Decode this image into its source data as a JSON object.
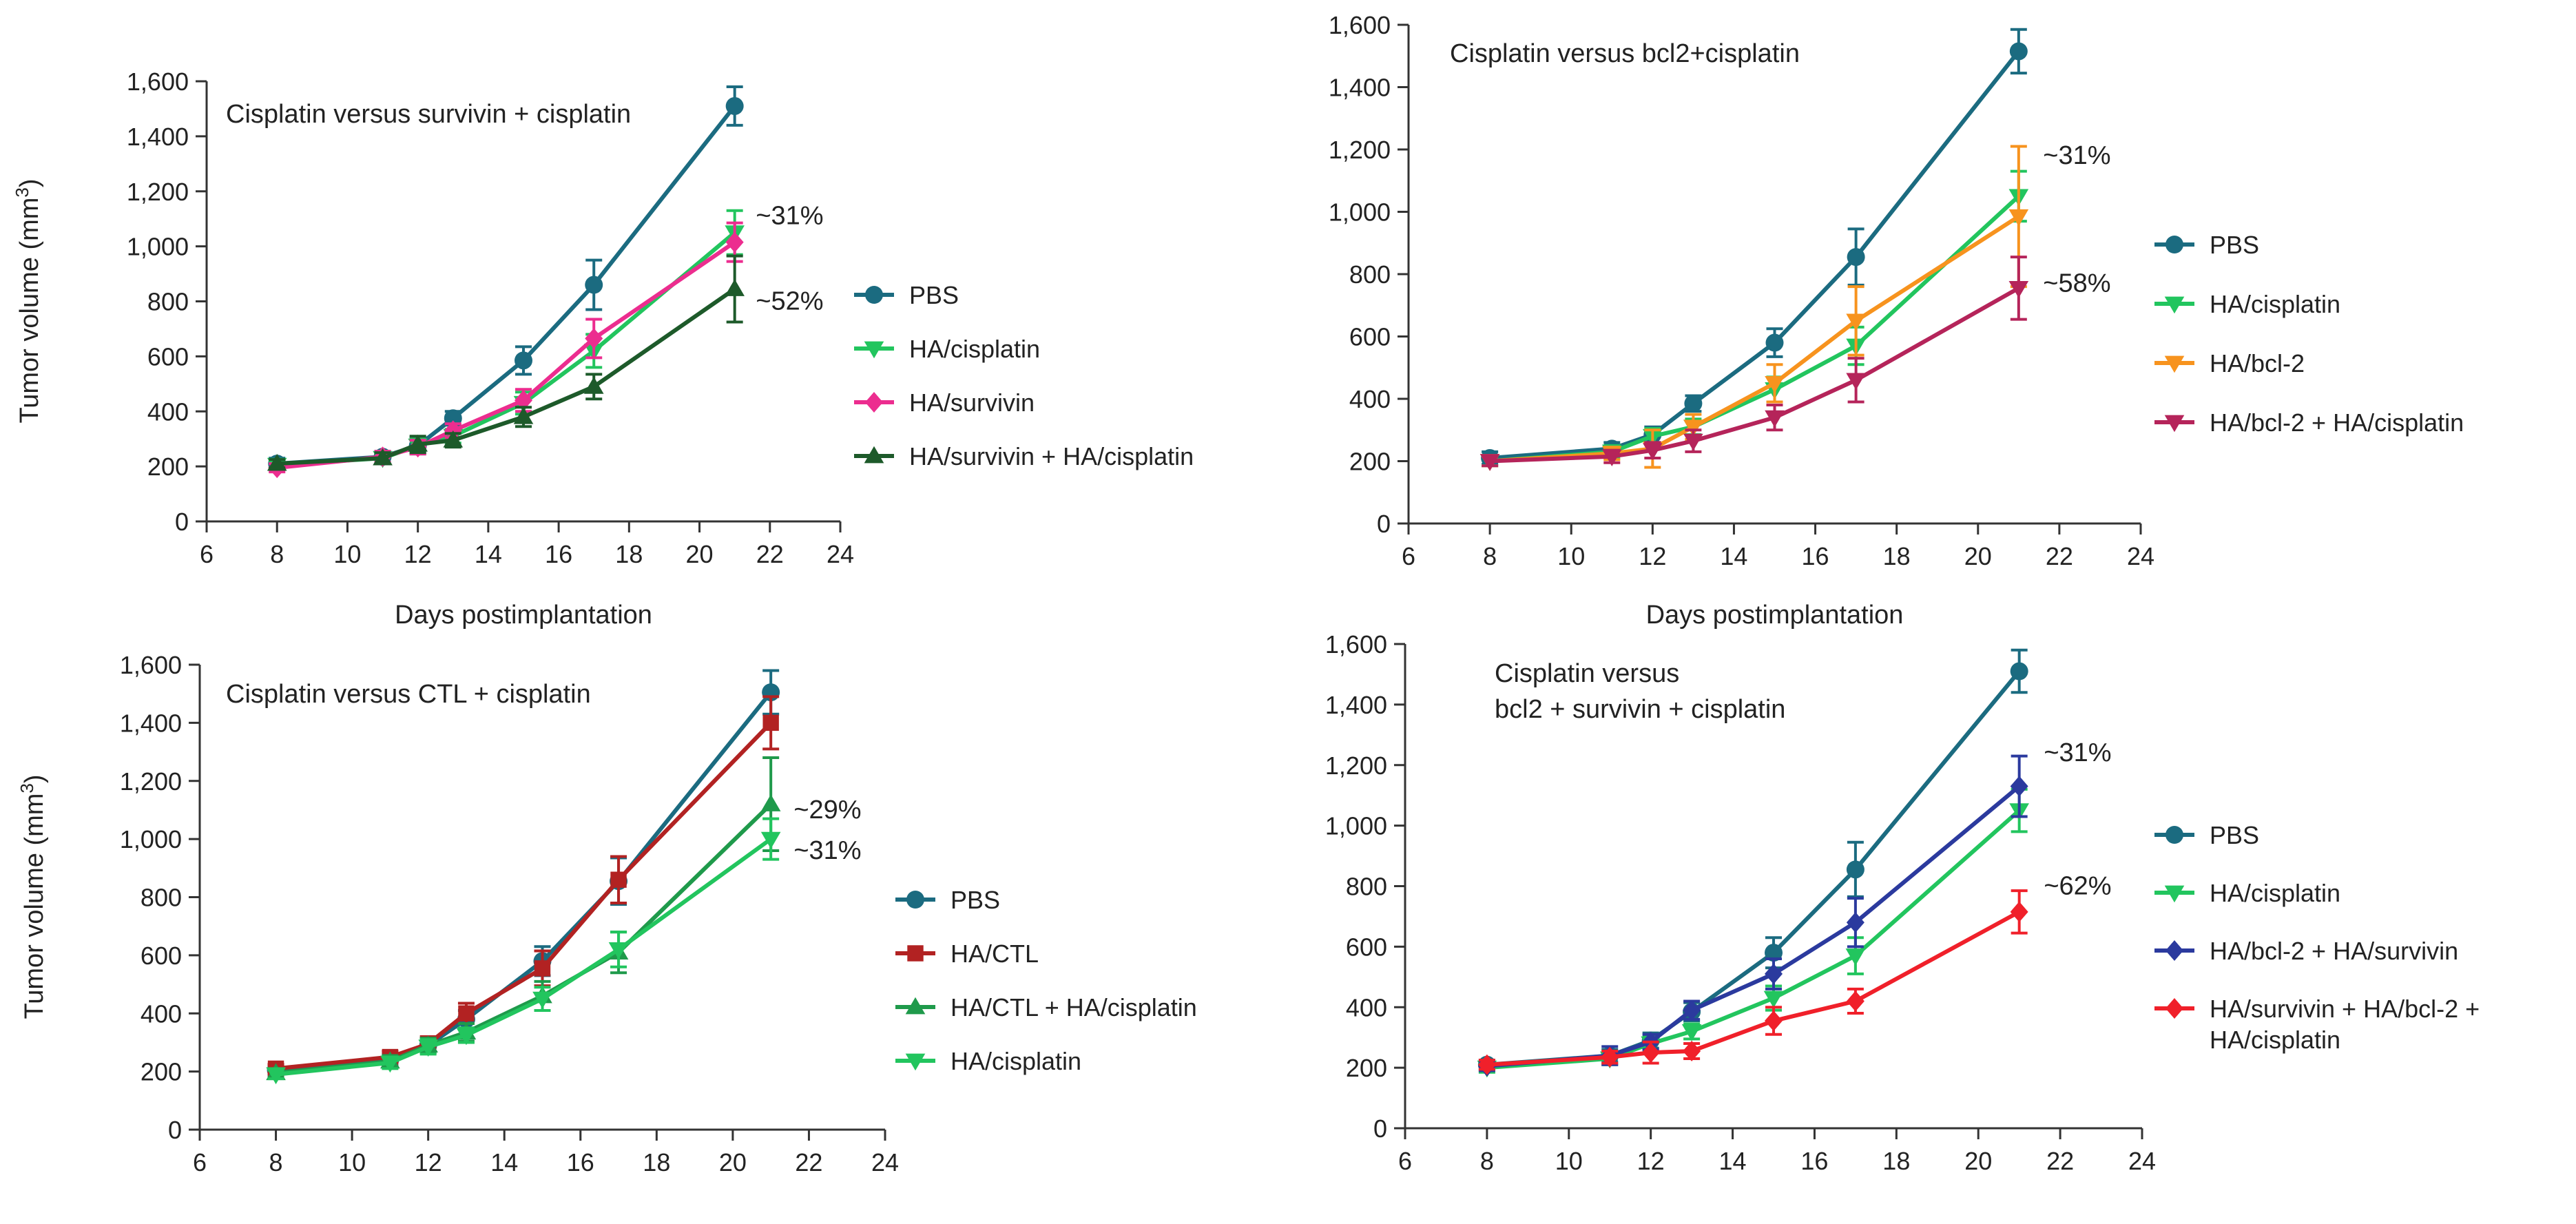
{
  "chart_data": [
    {
      "type": "line",
      "title": "Cisplatin versus survivin + cisplatin",
      "xlabel": "Days postimplantation",
      "ylabel": "Tumor volume (mm",
      "ylabel_sup": "3",
      "ylabel_close": ")",
      "xlim": [
        6,
        24
      ],
      "ylim": [
        0,
        1600
      ],
      "xticks": [
        6,
        8,
        10,
        12,
        14,
        16,
        18,
        20,
        22,
        24
      ],
      "yticks": [
        0,
        200,
        400,
        600,
        800,
        1000,
        1200,
        1400,
        1600
      ],
      "x_tick_labels": [
        "6",
        "8",
        "10",
        "12",
        "14",
        "16",
        "18",
        "20",
        "22",
        "24"
      ],
      "y_tick_labels": [
        "0",
        "200",
        "400",
        "600",
        "800",
        "1,000",
        "1,200",
        "1,400",
        "1,600"
      ],
      "grid": false,
      "legend_position": "right",
      "x": [
        8,
        11,
        12,
        13,
        15,
        17,
        21
      ],
      "series": [
        {
          "name": "PBS",
          "color": "#1b6b80",
          "marker": "circle",
          "values": [
            210,
            235,
            275,
            375,
            585,
            860,
            1510
          ],
          "errors": [
            20,
            20,
            30,
            25,
            50,
            90,
            70
          ]
        },
        {
          "name": "HA/cisplatin",
          "color": "#22c55e",
          "marker": "triangle-down",
          "values": [
            205,
            230,
            275,
            310,
            430,
            620,
            1050
          ],
          "errors": [
            15,
            20,
            25,
            25,
            40,
            60,
            80
          ]
        },
        {
          "name": "HA/survivin",
          "color": "#ec2d8f",
          "marker": "diamond",
          "values": [
            195,
            235,
            270,
            330,
            440,
            665,
            1015
          ],
          "errors": [
            15,
            20,
            25,
            25,
            40,
            70,
            70
          ]
        },
        {
          "name": "HA/survivin + HA/cisplatin",
          "color": "#1d5a2a",
          "marker": "triangle-up",
          "values": [
            210,
            230,
            280,
            295,
            380,
            490,
            845
          ],
          "errors": [
            15,
            20,
            30,
            25,
            35,
            45,
            120
          ]
        }
      ],
      "annotations": [
        {
          "text": "~31%",
          "x": 21.6,
          "y": 1110
        },
        {
          "text": "~52%",
          "x": 21.6,
          "y": 800
        }
      ]
    },
    {
      "type": "line",
      "title": "Cisplatin versus bcl2+cisplatin",
      "xlabel": "Days postimplantation",
      "ylabel": "",
      "ylabel_sup": "",
      "ylabel_close": "",
      "xlim": [
        6,
        24
      ],
      "ylim": [
        0,
        1600
      ],
      "xticks": [
        6,
        8,
        10,
        12,
        14,
        16,
        18,
        20,
        22,
        24
      ],
      "yticks": [
        0,
        200,
        400,
        600,
        800,
        1000,
        1200,
        1400,
        1600
      ],
      "x_tick_labels": [
        "6",
        "8",
        "10",
        "12",
        "14",
        "16",
        "18",
        "20",
        "22",
        "24"
      ],
      "y_tick_labels": [
        "0",
        "200",
        "400",
        "600",
        "800",
        "1,000",
        "1,200",
        "1,400",
        "1,600"
      ],
      "grid": false,
      "legend_position": "right",
      "x": [
        8,
        11,
        12,
        13,
        15,
        17,
        21
      ],
      "series": [
        {
          "name": "PBS",
          "color": "#1b6b80",
          "marker": "circle",
          "values": [
            210,
            240,
            285,
            385,
            580,
            855,
            1515
          ],
          "errors": [
            20,
            20,
            25,
            25,
            45,
            90,
            70
          ]
        },
        {
          "name": "HA/cisplatin",
          "color": "#22c55e",
          "marker": "triangle-down",
          "values": [
            200,
            230,
            280,
            310,
            430,
            570,
            1050
          ],
          "errors": [
            15,
            20,
            25,
            25,
            40,
            60,
            80
          ]
        },
        {
          "name": "HA/bcl-2",
          "color": "#f7931e",
          "marker": "triangle-down",
          "values": [
            200,
            225,
            240,
            310,
            450,
            650,
            985
          ],
          "errors": [
            15,
            20,
            60,
            40,
            60,
            110,
            225
          ]
        },
        {
          "name": "HA/bcl-2 + HA/cisplatin",
          "color": "#b5245a",
          "marker": "triangle-down",
          "values": [
            200,
            215,
            235,
            265,
            340,
            460,
            755
          ],
          "errors": [
            15,
            20,
            25,
            35,
            40,
            70,
            100
          ]
        }
      ],
      "annotations": [
        {
          "text": "~31%",
          "x": 21.6,
          "y": 1180
        },
        {
          "text": "~58%",
          "x": 21.6,
          "y": 770
        }
      ]
    },
    {
      "type": "line",
      "title": "Cisplatin versus CTL + cisplatin",
      "xlabel": "",
      "ylabel": "Tumor volume (mm",
      "ylabel_sup": "3",
      "ylabel_close": ")",
      "xlim": [
        6,
        24
      ],
      "ylim": [
        0,
        1600
      ],
      "xticks": [
        6,
        8,
        10,
        12,
        14,
        16,
        18,
        20,
        22,
        24
      ],
      "yticks": [
        0,
        200,
        400,
        600,
        800,
        1000,
        1200,
        1400,
        1600
      ],
      "x_tick_labels": [
        "6",
        "8",
        "10",
        "12",
        "14",
        "16",
        "18",
        "20",
        "22",
        "24"
      ],
      "y_tick_labels": [
        "0",
        "200",
        "400",
        "600",
        "800",
        "1,000",
        "1,200",
        "1,400",
        "1,600"
      ],
      "grid": false,
      "legend_position": "right",
      "x": [
        8,
        11,
        12,
        13,
        15,
        17,
        21
      ],
      "series": [
        {
          "name": "PBS",
          "color": "#1b6b80",
          "marker": "circle",
          "values": [
            205,
            240,
            290,
            380,
            580,
            855,
            1505
          ],
          "errors": [
            15,
            20,
            25,
            30,
            50,
            80,
            75
          ]
        },
        {
          "name": "HA/CTL",
          "color": "#b22222",
          "marker": "square",
          "values": [
            210,
            250,
            295,
            400,
            555,
            860,
            1400
          ],
          "errors": [
            15,
            20,
            25,
            35,
            60,
            80,
            90
          ]
        },
        {
          "name": "HA/CTL + HA/cisplatin",
          "color": "#1f9a4b",
          "marker": "triangle-up",
          "values": [
            195,
            235,
            290,
            335,
            460,
            610,
            1120
          ],
          "errors": [
            15,
            20,
            25,
            30,
            50,
            70,
            160
          ]
        },
        {
          "name": "HA/cisplatin",
          "color": "#22c55e",
          "marker": "triangle-down",
          "values": [
            190,
            230,
            285,
            325,
            450,
            620,
            1000
          ],
          "errors": [
            15,
            20,
            25,
            25,
            40,
            60,
            70
          ]
        }
      ],
      "annotations": [
        {
          "text": "~29%",
          "x": 21.6,
          "y": 1100
        },
        {
          "text": "~31%",
          "x": 21.6,
          "y": 960
        }
      ]
    },
    {
      "type": "line",
      "title": "Cisplatin versus",
      "title_line2": "bcl2 + survivin + cisplatin",
      "xlabel": "",
      "ylabel": "",
      "ylabel_sup": "",
      "ylabel_close": "",
      "xlim": [
        6,
        24
      ],
      "ylim": [
        0,
        1600
      ],
      "xticks": [
        6,
        8,
        10,
        12,
        14,
        16,
        18,
        20,
        22,
        24
      ],
      "yticks": [
        0,
        200,
        400,
        600,
        800,
        1000,
        1200,
        1400,
        1600
      ],
      "x_tick_labels": [
        "6",
        "8",
        "10",
        "12",
        "14",
        "16",
        "18",
        "20",
        "22",
        "24"
      ],
      "y_tick_labels": [
        "0",
        "200",
        "400",
        "600",
        "800",
        "1,000",
        "1,200",
        "1,400",
        "1,600"
      ],
      "grid": false,
      "legend_position": "right",
      "x": [
        8,
        11,
        12,
        13,
        15,
        17,
        21
      ],
      "series": [
        {
          "name": "PBS",
          "color": "#1b6b80",
          "marker": "circle",
          "values": [
            210,
            240,
            290,
            385,
            580,
            855,
            1510
          ],
          "errors": [
            15,
            20,
            25,
            30,
            50,
            90,
            70
          ]
        },
        {
          "name": "HA/cisplatin",
          "color": "#22c55e",
          "marker": "triangle-down",
          "values": [
            200,
            230,
            280,
            320,
            430,
            570,
            1050
          ],
          "errors": [
            15,
            20,
            25,
            25,
            40,
            60,
            70
          ]
        },
        {
          "name": "HA/bcl-2 + HA/survivin",
          "color": "#2b3a9e",
          "marker": "diamond",
          "values": [
            205,
            240,
            285,
            390,
            510,
            680,
            1130
          ],
          "errors": [
            15,
            30,
            25,
            30,
            50,
            80,
            100
          ]
        },
        {
          "name": "HA/survivin + HA/bcl-2 + HA/cisplatin",
          "name_line2": "HA/cisplatin",
          "name_line1": "HA/survivin + HA/bcl-2 +",
          "color": "#f0202a",
          "marker": "diamond",
          "values": [
            210,
            235,
            250,
            255,
            355,
            420,
            715
          ],
          "errors": [
            15,
            20,
            35,
            25,
            45,
            40,
            70
          ]
        }
      ],
      "annotations": [
        {
          "text": "~31%",
          "x": 21.6,
          "y": 1240
        },
        {
          "text": "~62%",
          "x": 21.6,
          "y": 800
        }
      ]
    }
  ]
}
